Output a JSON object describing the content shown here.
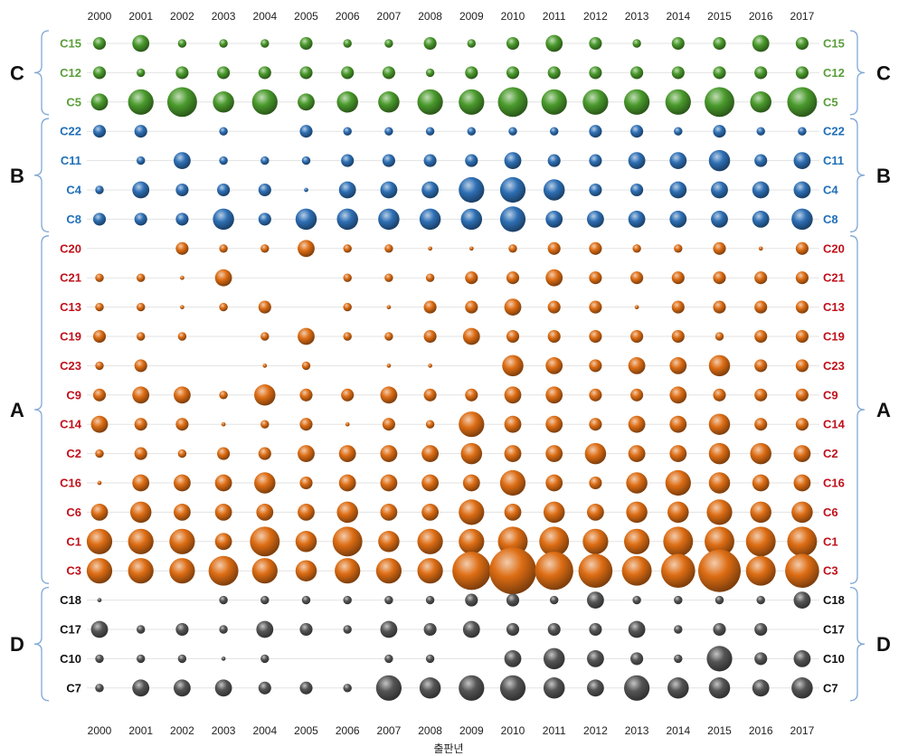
{
  "chart_data": {
    "type": "scatter",
    "title": "",
    "xlabel": "출판년",
    "ylabel": "",
    "years": [
      "2000",
      "2001",
      "2002",
      "2003",
      "2004",
      "2005",
      "2006",
      "2007",
      "2008",
      "2009",
      "2010",
      "2011",
      "2012",
      "2013",
      "2014",
      "2015",
      "2016",
      "2017"
    ],
    "groups": [
      {
        "name": "C",
        "color": "#4a9a2c",
        "label_color": "#5a9e3a",
        "rows": [
          "C15",
          "C12",
          "C5"
        ]
      },
      {
        "name": "B",
        "color": "#2e6fb4",
        "label_color": "#1f6fb8",
        "rows": [
          "C22",
          "C11",
          "C4",
          "C8"
        ]
      },
      {
        "name": "A",
        "color": "#dd6d14",
        "label_color": "#c0101a",
        "rows": [
          "C20",
          "C21",
          "C13",
          "C19",
          "C23",
          "C9",
          "C14",
          "C2",
          "C16",
          "C6",
          "C1",
          "C3"
        ]
      },
      {
        "name": "D",
        "color": "#555555",
        "label_color": "#111111",
        "rows": [
          "C18",
          "C17",
          "C10",
          "C7"
        ]
      }
    ],
    "series": [
      {
        "name": "C15",
        "values": [
          3,
          4,
          2,
          2,
          2,
          3,
          2,
          2,
          3,
          2,
          3,
          4,
          3,
          2,
          3,
          3,
          4,
          3
        ]
      },
      {
        "name": "C12",
        "values": [
          3,
          2,
          3,
          3,
          3,
          3,
          3,
          3,
          2,
          3,
          3,
          3,
          3,
          3,
          3,
          3,
          3,
          3
        ]
      },
      {
        "name": "C5",
        "values": [
          4,
          6,
          7,
          5,
          6,
          4,
          5,
          5,
          6,
          6,
          7,
          6,
          6,
          6,
          6,
          7,
          5,
          7
        ]
      },
      {
        "name": "C22",
        "values": [
          3,
          3,
          0,
          2,
          0,
          3,
          2,
          2,
          2,
          2,
          2,
          2,
          3,
          3,
          2,
          3,
          2,
          2
        ]
      },
      {
        "name": "C11",
        "values": [
          0,
          2,
          4,
          2,
          2,
          2,
          3,
          3,
          3,
          3,
          4,
          3,
          3,
          4,
          4,
          5,
          3,
          4
        ]
      },
      {
        "name": "C4",
        "values": [
          2,
          4,
          3,
          3,
          3,
          1,
          4,
          4,
          4,
          6,
          6,
          5,
          3,
          3,
          4,
          4,
          4,
          4
        ]
      },
      {
        "name": "C8",
        "values": [
          3,
          3,
          3,
          5,
          3,
          5,
          5,
          5,
          5,
          5,
          6,
          4,
          4,
          4,
          4,
          4,
          4,
          5
        ]
      },
      {
        "name": "C20",
        "values": [
          0,
          0,
          3,
          2,
          2,
          4,
          2,
          2,
          1,
          1,
          2,
          3,
          3,
          2,
          2,
          3,
          1,
          3
        ]
      },
      {
        "name": "C21",
        "values": [
          2,
          2,
          1,
          4,
          0,
          0,
          2,
          2,
          2,
          3,
          3,
          4,
          3,
          3,
          3,
          3,
          3,
          3
        ]
      },
      {
        "name": "C13",
        "values": [
          2,
          2,
          1,
          2,
          3,
          0,
          2,
          1,
          3,
          3,
          4,
          3,
          3,
          1,
          3,
          3,
          3,
          3
        ]
      },
      {
        "name": "C19",
        "values": [
          3,
          2,
          2,
          0,
          2,
          4,
          2,
          2,
          3,
          4,
          3,
          3,
          3,
          3,
          3,
          2,
          3,
          3
        ]
      },
      {
        "name": "C23",
        "values": [
          2,
          3,
          0,
          0,
          1,
          2,
          0,
          1,
          1,
          0,
          5,
          4,
          3,
          4,
          4,
          5,
          3,
          3
        ]
      },
      {
        "name": "C9",
        "values": [
          3,
          4,
          4,
          2,
          5,
          3,
          3,
          4,
          3,
          3,
          4,
          4,
          3,
          3,
          4,
          3,
          3,
          3
        ]
      },
      {
        "name": "C14",
        "values": [
          4,
          3,
          3,
          1,
          2,
          3,
          1,
          3,
          2,
          6,
          4,
          4,
          3,
          4,
          4,
          5,
          3,
          3
        ]
      },
      {
        "name": "C2",
        "values": [
          2,
          3,
          2,
          3,
          3,
          4,
          4,
          4,
          4,
          5,
          4,
          4,
          5,
          4,
          4,
          5,
          5,
          4
        ]
      },
      {
        "name": "C16",
        "values": [
          1,
          4,
          4,
          4,
          5,
          3,
          4,
          4,
          4,
          4,
          6,
          4,
          3,
          5,
          6,
          5,
          4,
          4
        ]
      },
      {
        "name": "C6",
        "values": [
          4,
          5,
          4,
          4,
          4,
          4,
          5,
          4,
          4,
          6,
          4,
          5,
          4,
          5,
          5,
          6,
          5,
          5
        ]
      },
      {
        "name": "C1",
        "values": [
          6,
          6,
          6,
          4,
          7,
          5,
          7,
          5,
          6,
          6,
          7,
          7,
          6,
          6,
          7,
          7,
          7,
          7
        ]
      },
      {
        "name": "C3",
        "values": [
          6,
          6,
          6,
          7,
          6,
          5,
          6,
          6,
          6,
          9,
          11,
          9,
          8,
          7,
          8,
          10,
          7,
          8
        ]
      },
      {
        "name": "C18",
        "values": [
          1,
          0,
          0,
          2,
          2,
          2,
          2,
          2,
          2,
          3,
          3,
          2,
          4,
          2,
          2,
          2,
          2,
          4
        ]
      },
      {
        "name": "C17",
        "values": [
          4,
          2,
          3,
          2,
          4,
          3,
          2,
          4,
          3,
          4,
          3,
          3,
          3,
          4,
          2,
          3,
          3,
          0
        ]
      },
      {
        "name": "C10",
        "values": [
          2,
          2,
          2,
          1,
          2,
          0,
          0,
          2,
          2,
          0,
          4,
          5,
          4,
          3,
          2,
          6,
          3,
          4
        ]
      },
      {
        "name": "C7",
        "values": [
          2,
          4,
          4,
          4,
          3,
          3,
          2,
          6,
          5,
          6,
          6,
          5,
          4,
          6,
          5,
          5,
          4,
          5
        ]
      }
    ]
  }
}
